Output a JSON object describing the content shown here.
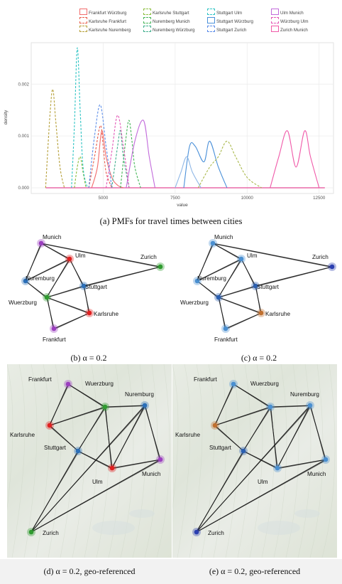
{
  "chart_data": {
    "type": "line",
    "xlabel": "value",
    "ylabel": "density",
    "xlim": [
      2500,
      13000
    ],
    "ylim": [
      0,
      0.0028
    ],
    "xticks": [
      5000,
      7500,
      10000,
      12500
    ],
    "yticks": [
      0.0,
      0.001,
      0.002
    ],
    "ytick_labels": [
      "0.000",
      "0.001",
      "0.002"
    ],
    "grid": true,
    "legend_placement": "top",
    "series": [
      {
        "name": "Frankfurt Würzburg",
        "color": "#f26b6b",
        "dash": "solid",
        "x": [
          4600,
          4800,
          4950,
          5100,
          5300,
          5500,
          5700
        ],
        "y": [
          0,
          0.0004,
          0.0011,
          0.0006,
          0.0002,
          5e-05,
          0
        ]
      },
      {
        "name": "Karlsruhe Frankfurt",
        "color": "#e85c4a",
        "dash": "dashed",
        "x": [
          4500,
          4700,
          4900,
          5000,
          5100,
          5300
        ],
        "y": [
          0,
          0.0006,
          0.0012,
          0.0008,
          0.0003,
          0
        ]
      },
      {
        "name": "Karlsruhe Nuremberg",
        "color": "#b6a03a",
        "dash": "dashed",
        "x": [
          3000,
          3150,
          3250,
          3350,
          3500,
          3650
        ],
        "y": [
          0,
          0.0014,
          0.0019,
          0.0013,
          0.0004,
          0
        ]
      },
      {
        "name": "Karlsruhe Stuttgart",
        "color": "#8bbd3c",
        "dash": "dashed",
        "x": [
          4000,
          4100,
          4200,
          4300,
          4400
        ],
        "y": [
          0,
          0.0004,
          0.0006,
          0.0003,
          0
        ]
      },
      {
        "name": "Nuremberg Munich",
        "color": "#46b558",
        "dash": "dashed",
        "x": [
          5600,
          5800,
          5900,
          6000,
          6100,
          6300
        ],
        "y": [
          0,
          0.001,
          0.0013,
          0.0009,
          0.0004,
          0
        ]
      },
      {
        "name": "Nuremberg Würzburg",
        "color": "#3fae8c",
        "dash": "dashed",
        "x": [
          5300,
          5500,
          5600,
          5700,
          5900
        ],
        "y": [
          0,
          0.0008,
          0.0011,
          0.0006,
          0
        ]
      },
      {
        "name": "Stuttgart Ulm",
        "color": "#2fc4c4",
        "dash": "dashed",
        "x": [
          3900,
          4000,
          4100,
          4200,
          4300,
          4450
        ],
        "y": [
          0,
          0.0012,
          0.0027,
          0.0015,
          0.0004,
          0
        ]
      },
      {
        "name": "Stuttgart Würzburg",
        "color": "#4a90d9",
        "dash": "solid",
        "x": [
          7800,
          8000,
          8200,
          8500,
          8700,
          9000,
          9300
        ],
        "y": [
          0,
          0.0008,
          0.0008,
          0.0005,
          0.0009,
          0.0004,
          0
        ]
      },
      {
        "name": "Stuttgart Zurich",
        "color": "#5b8ce8",
        "dash": "dashed",
        "x": [
          4500,
          4700,
          4900,
          5100,
          5300
        ],
        "y": [
          0,
          0.001,
          0.0016,
          0.0008,
          0
        ]
      },
      {
        "name": "Ulm Munich",
        "color": "#c26adb",
        "dash": "solid",
        "x": [
          5800,
          6100,
          6400,
          6600,
          6800
        ],
        "y": [
          0,
          0.0009,
          0.0013,
          0.0006,
          0
        ]
      },
      {
        "name": "Würzburg Ulm",
        "color": "#e357b6",
        "dash": "dashed",
        "x": [
          5100,
          5300,
          5500,
          5700,
          5900
        ],
        "y": [
          0,
          0.0007,
          0.0014,
          0.0008,
          0
        ]
      },
      {
        "name": "Zurich Munich",
        "color": "#f05aa9",
        "dash": "solid",
        "x": [
          10800,
          11100,
          11400,
          11700,
          12000,
          12200,
          12500
        ],
        "y": [
          0,
          0.0006,
          0.0011,
          0.0004,
          0.0011,
          0.0006,
          0
        ]
      }
    ]
  },
  "chart_extra_lines": [
    {
      "color": "#a9b84a",
      "dash": "dashed",
      "x": [
        8300,
        8700,
        9000,
        9300,
        9600,
        10000,
        10500
      ],
      "y": [
        0,
        0.0004,
        0.0006,
        0.0009,
        0.0006,
        0.0002,
        0
      ]
    },
    {
      "color": "#8fb7e6",
      "dash": "solid",
      "x": [
        7500,
        7700,
        7900,
        8100,
        8400
      ],
      "y": [
        0,
        0.0003,
        0.0006,
        0.0003,
        0
      ]
    }
  ],
  "captions": {
    "a": "(a) PMFs for travel times between cities",
    "b": "(b) α = 0.2",
    "c": "(c) α = 0.2",
    "d": "(d) α = 0.2, geo-referenced",
    "e": "(e) α = 0.2, geo-referenced"
  },
  "graphs": {
    "b": {
      "nodes": [
        {
          "label": "Munich",
          "color": "#9b3fbf"
        },
        {
          "label": "Ulm",
          "color": "#e02020"
        },
        {
          "label": "Zurich",
          "color": "#2f9b2f"
        },
        {
          "label": "Nuremburg",
          "color": "#2b6fb8"
        },
        {
          "label": "Stuttgart",
          "color": "#2b6fb8"
        },
        {
          "label": "Wuerzburg",
          "color": "#2f9b2f"
        },
        {
          "label": "Karlsruhe",
          "color": "#e02020"
        },
        {
          "label": "Frankfurt",
          "color": "#9b3fbf"
        }
      ]
    },
    "c": {
      "nodes": [
        {
          "label": "Munich",
          "color": "#4a8fd0"
        },
        {
          "label": "Ulm",
          "color": "#4a8fd0"
        },
        {
          "label": "Zurich",
          "color": "#2b3fb0"
        },
        {
          "label": "Nuremburg",
          "color": "#4a8fd0"
        },
        {
          "label": "Stuttgart",
          "color": "#2b5fb0"
        },
        {
          "label": "Wuerzburg",
          "color": "#2b5fb0"
        },
        {
          "label": "Karlsruhe",
          "color": "#c07030"
        },
        {
          "label": "Frankfurt",
          "color": "#4a8fd0"
        }
      ]
    },
    "d": {
      "nodes": [
        {
          "label": "Frankfurt",
          "color": "#9b3fbf"
        },
        {
          "label": "Wuerzburg",
          "color": "#2f9b2f"
        },
        {
          "label": "Nuremburg",
          "color": "#2b6fb8"
        },
        {
          "label": "Karlsruhe",
          "color": "#e02020"
        },
        {
          "label": "Stuttgart",
          "color": "#2b6fb8"
        },
        {
          "label": "Ulm",
          "color": "#e02020"
        },
        {
          "label": "Munich",
          "color": "#9b3fbf"
        },
        {
          "label": "Zurich",
          "color": "#2f9b2f"
        }
      ]
    },
    "e": {
      "nodes": [
        {
          "label": "Frankfurt",
          "color": "#4a8fd0"
        },
        {
          "label": "Wuerzburg",
          "color": "#4a8fd0"
        },
        {
          "label": "Nuremburg",
          "color": "#4a8fd0"
        },
        {
          "label": "Karlsruhe",
          "color": "#c07030"
        },
        {
          "label": "Stuttgart",
          "color": "#2b5fb0"
        },
        {
          "label": "Ulm",
          "color": "#4a8fd0"
        },
        {
          "label": "Munich",
          "color": "#4a8fd0"
        },
        {
          "label": "Zurich",
          "color": "#2b3fb0"
        }
      ]
    }
  }
}
